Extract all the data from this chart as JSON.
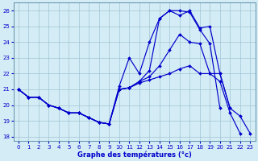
{
  "xlabel": "Graphe des températures (°c)",
  "xlim": [
    0,
    23
  ],
  "ylim": [
    18,
    26
  ],
  "yticks": [
    18,
    19,
    20,
    21,
    22,
    23,
    24,
    25,
    26
  ],
  "xticks": [
    0,
    1,
    2,
    3,
    4,
    5,
    6,
    7,
    8,
    9,
    10,
    11,
    12,
    13,
    14,
    15,
    16,
    17,
    18,
    19,
    20,
    21,
    22,
    23
  ],
  "bg_color": "#d4ecf5",
  "grid_color": "#a0c4d4",
  "line_color": "#0000cc",
  "lines": [
    {
      "x": [
        0,
        1,
        2,
        3,
        4,
        5,
        6,
        7,
        8,
        9,
        10,
        11,
        12,
        13,
        14,
        15,
        16,
        17,
        18,
        19,
        20,
        21,
        22,
        23
      ],
      "y": [
        21.0,
        20.5,
        20.5,
        20.0,
        19.8,
        19.5,
        19.5,
        19.2,
        18.9,
        18.8,
        21.0,
        21.1,
        21.5,
        22.2,
        25.5,
        26.0,
        26.0,
        25.9,
        24.8,
        23.9,
        19.8,
        null,
        null,
        null
      ]
    },
    {
      "x": [
        0,
        1,
        2,
        3,
        4,
        5,
        6,
        7,
        8,
        9,
        10,
        11,
        12,
        13,
        14,
        15,
        16,
        17,
        18,
        19,
        20,
        21,
        22,
        23
      ],
      "y": [
        21.0,
        20.5,
        20.5,
        20.0,
        19.8,
        19.5,
        19.5,
        19.2,
        18.9,
        18.8,
        21.2,
        23.0,
        22.0,
        24.0,
        25.5,
        26.0,
        25.7,
        26.0,
        24.9,
        25.0,
        22.0,
        19.8,
        19.3,
        18.2
      ]
    },
    {
      "x": [
        0,
        1,
        2,
        3,
        4,
        5,
        6,
        7,
        8,
        9,
        10,
        11,
        12,
        13,
        14,
        15,
        16,
        17,
        18,
        19,
        20,
        21,
        22,
        23
      ],
      "y": [
        21.0,
        20.5,
        20.5,
        20.0,
        19.8,
        19.5,
        19.5,
        19.2,
        18.9,
        18.8,
        21.0,
        21.1,
        21.5,
        21.8,
        22.5,
        23.5,
        24.5,
        24.0,
        23.9,
        22.0,
        21.5,
        19.5,
        18.2,
        null
      ]
    },
    {
      "x": [
        0,
        1,
        2,
        3,
        4,
        5,
        6,
        7,
        8,
        9,
        10,
        11,
        12,
        13,
        14,
        15,
        16,
        17,
        18,
        19,
        20,
        21,
        22,
        23
      ],
      "y": [
        21.0,
        20.5,
        20.5,
        20.0,
        19.8,
        19.5,
        19.5,
        19.2,
        18.9,
        18.8,
        21.0,
        21.1,
        21.4,
        21.6,
        21.8,
        22.0,
        22.3,
        22.5,
        22.0,
        22.0,
        22.0,
        19.8,
        null,
        null
      ]
    }
  ]
}
